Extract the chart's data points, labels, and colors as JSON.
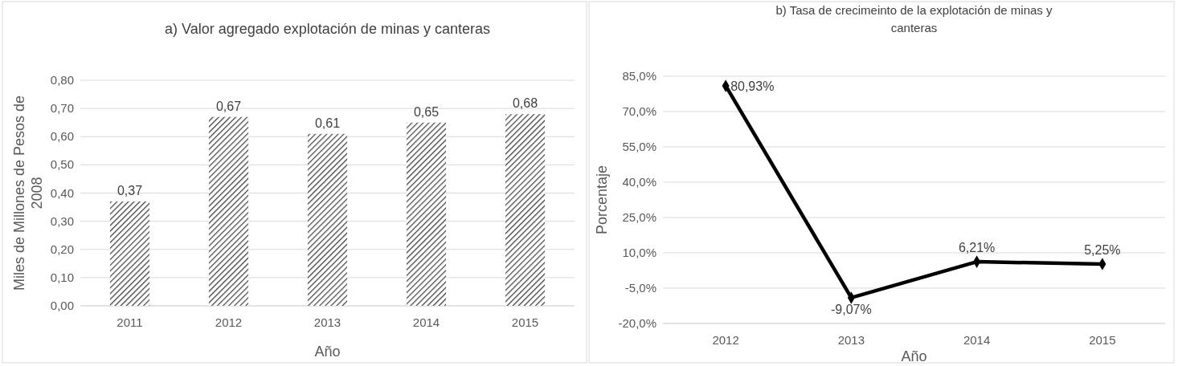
{
  "chart_data": [
    {
      "type": "bar",
      "title": "a) Valor agregado explotación de minas y canteras",
      "xlabel": "Año",
      "ylabel": "Miles de Millones de Pesos de 2008",
      "categories": [
        "2011",
        "2012",
        "2013",
        "2014",
        "2015"
      ],
      "series": [
        {
          "color": "#404040",
          "values": [
            0.37,
            0.67,
            0.61,
            0.65,
            0.68
          ],
          "value_labels": [
            "0,37",
            "0,67",
            "0,61",
            "0,65",
            "0,68"
          ]
        }
      ],
      "ylim": [
        0,
        0.8
      ],
      "yticks": [
        {
          "value": 0,
          "label": "0,00"
        },
        {
          "value": 0.1,
          "label": "0,10"
        },
        {
          "value": 0.2,
          "label": "0,20"
        },
        {
          "value": 0.3,
          "label": "0,30"
        },
        {
          "value": 0.4,
          "label": "0,40"
        },
        {
          "value": 0.5,
          "label": "0,50"
        },
        {
          "value": 0.6,
          "label": "0,60"
        },
        {
          "value": 0.7,
          "label": "0,70"
        },
        {
          "value": 0.8,
          "label": "0,80"
        }
      ],
      "grid": "y"
    },
    {
      "type": "line",
      "title": "b) Tasa de crecimeinto de la explotación de minas y canteras",
      "xlabel": "Año",
      "ylabel": "Porcentaje",
      "categories": [
        "2012",
        "2013",
        "2014",
        "2015"
      ],
      "series": [
        {
          "color": "#000000",
          "values": [
            80.93,
            -9.07,
            6.21,
            5.25
          ],
          "value_labels": [
            "80,93%",
            "-9,07%",
            "6,21%",
            "5,25%"
          ]
        }
      ],
      "ylim": [
        -20,
        85
      ],
      "yticks": [
        {
          "value": -20,
          "label": "-20,0%"
        },
        {
          "value": -5,
          "label": "-5,0%"
        },
        {
          "value": 10,
          "label": "10,0%"
        },
        {
          "value": 25,
          "label": "25,0%"
        },
        {
          "value": 40,
          "label": "40,0%"
        },
        {
          "value": 55,
          "label": "55,0%"
        },
        {
          "value": 70,
          "label": "70,0%"
        },
        {
          "value": 85,
          "label": "85,0%"
        }
      ],
      "grid": "y",
      "marker": "diamond",
      "line_style": "solid"
    }
  ]
}
